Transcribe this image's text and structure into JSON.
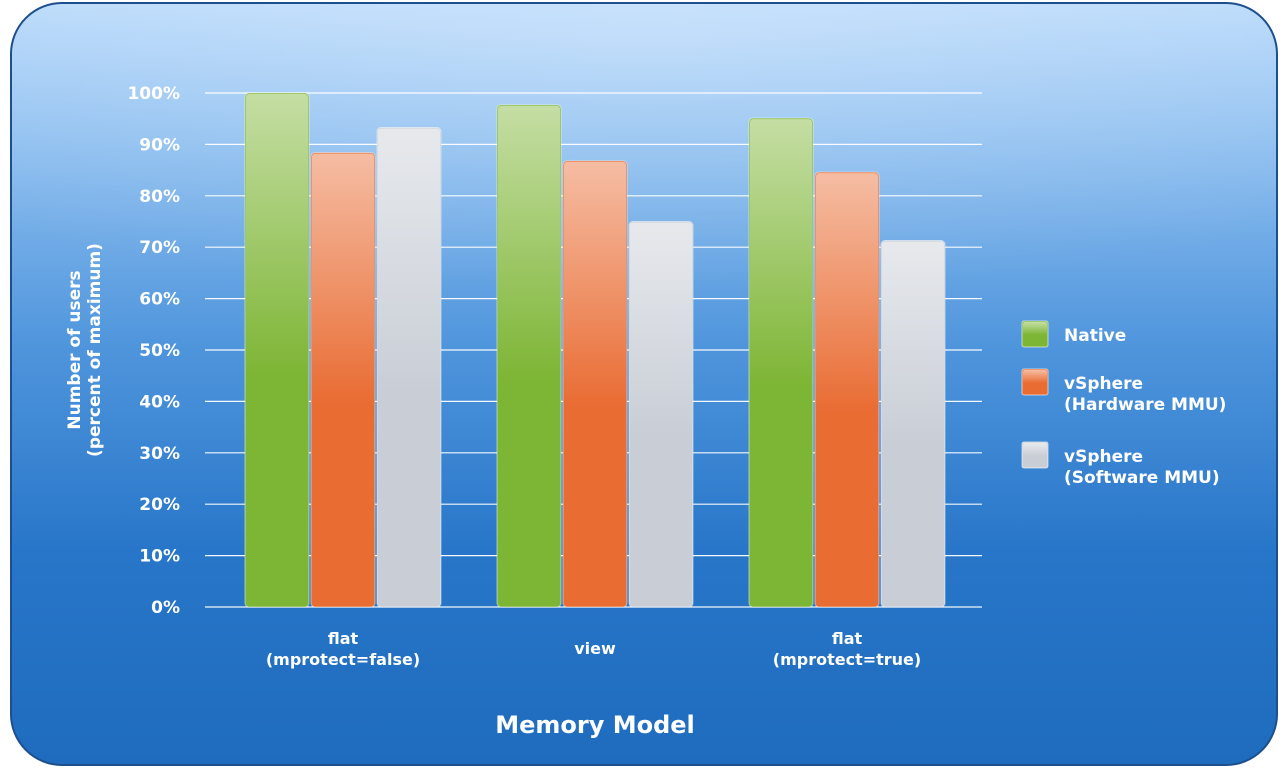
{
  "chart_data": {
    "type": "bar",
    "title": "",
    "xlabel": "Memory Model",
    "ylabel": [
      "Number of users",
      "(percent of maximum)"
    ],
    "ylim": [
      0,
      100
    ],
    "yticks": [
      0,
      10,
      20,
      30,
      40,
      50,
      60,
      70,
      80,
      90,
      100
    ],
    "ytick_labels": [
      "0%",
      "10%",
      "20%",
      "30%",
      "40%",
      "50%",
      "60%",
      "70%",
      "80%",
      "90%",
      "100%"
    ],
    "grid": true,
    "legend_position": "right",
    "categories": [
      [
        "flat",
        "(mprotect=false)"
      ],
      [
        "view"
      ],
      [
        "flat",
        "(mprotect=true)"
      ]
    ],
    "series": [
      {
        "name": [
          "Native"
        ],
        "color": "#7db534",
        "values": [
          100,
          97.7,
          95.1
        ]
      },
      {
        "name": [
          "vSphere",
          "(Hardware MMU)"
        ],
        "color": "#e96c33",
        "values": [
          88.4,
          86.8,
          84.6
        ]
      },
      {
        "name": [
          "vSphere",
          "(Software MMU)"
        ],
        "color": "#c9ced6",
        "values": [
          93.3,
          75.0,
          71.3
        ]
      }
    ]
  }
}
